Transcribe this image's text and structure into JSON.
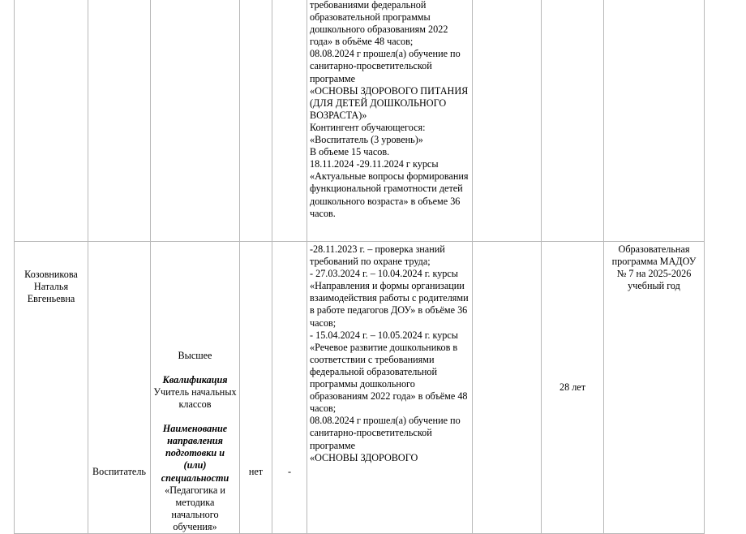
{
  "rows": [
    {
      "name": "",
      "position": "",
      "education": null,
      "c4": "",
      "c5": "",
      "training": "требованиями федеральной образовательной программы дошкольного образованиям 2022 года» в объёме 48 часов;\n08.08.2024 г  прошел(а) обучение по санитарно-просветительской программе\n «ОСНОВЫ ЗДОРОВОГО ПИТАНИЯ (ДЛЯ ДЕТЕЙ ДОШКОЛЬНОГО ВОЗРАСТА)»\nКонтингент обучающегося: «Воспитатель (3 уровень)»\nВ объеме 15 часов.\n18.11.2024 -29.11.2024 г курсы «Актуальные вопросы формирования функциональной грамотности детей дошкольного возраста» в объеме 36 часов.",
      "c7": "",
      "experience": "",
      "program": ""
    },
    {
      "name": "Козовникова Наталья Евгеньевна",
      "position": "Воспитатель",
      "education": {
        "level": "Высшее",
        "qualification_label": "Квалификация",
        "qualification": "Учитель начальных классов",
        "specialty_label": "Наименование направления подготовки и (или) специальности",
        "specialty": "«Педагогика и методика начального обучения»"
      },
      "c4": "нет",
      "c5": "-",
      "training": "-28.11.2023 г. – проверка знаний требований по охране труда;\n- 27.03.2024 г. – 10.04.2024 г. курсы «Направления и формы организации взаимодействия работы с родителями в работе педагогов ДОУ» в объёме 36 часов;\n- 15.04.2024 г. – 10.05.2024  г. курсы «Речевое развитие дошкольников в соответствии с требованиями федеральной образовательной программы дошкольного образованиям 2022 года» в объёме 48 часов;\n08.08.2024 г  прошел(а) обучение по санитарно-просветительской программе\n «ОСНОВЫ ЗДОРОВОГО",
      "c7": "",
      "experience": "28 лет",
      "program": "Образовательная программа МАДОУ № 7  на 2025-2026 учебный год"
    }
  ]
}
